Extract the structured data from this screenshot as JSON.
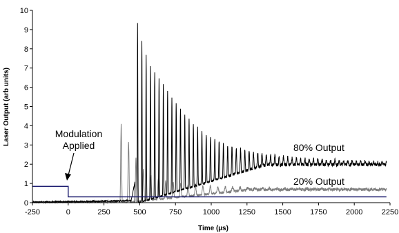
{
  "chart_data": {
    "type": "line",
    "title": "",
    "xlabel": "Time (µs)",
    "ylabel": "Laser Output (arb units)",
    "xlim": [
      -250,
      2250
    ],
    "ylim": [
      0,
      10
    ],
    "x_ticks": [
      -250,
      0,
      250,
      500,
      750,
      1000,
      1250,
      1500,
      1750,
      2000,
      2250
    ],
    "y_ticks": [
      0,
      1,
      2,
      3,
      4,
      5,
      6,
      7,
      8,
      9,
      10
    ],
    "grid": false,
    "legend": "none",
    "series": [
      {
        "name": "80% Output",
        "color": "#000000",
        "description_points": {
          "x": [
            -250,
            0,
            440,
            470,
            485,
            530,
            580,
            630,
            680,
            730,
            780,
            850,
            950,
            1100,
            1300,
            1600,
            1900,
            2225
          ],
          "y": [
            0.03,
            0.05,
            0.1,
            1.2,
            9.35,
            7.95,
            7.0,
            6.5,
            6.0,
            5.4,
            4.9,
            4.3,
            3.6,
            3.0,
            2.6,
            2.3,
            2.2,
            2.1
          ]
        },
        "steady_state": 2.0,
        "first_peak_time": 485
      },
      {
        "name": "20% Output",
        "color": "#808080",
        "description_points": {
          "x": [
            -250,
            0,
            350,
            370,
            420,
            470,
            520,
            600,
            800,
            1000,
            1300,
            2225
          ],
          "y": [
            0.0,
            0.0,
            0.02,
            4.1,
            3.2,
            2.4,
            1.8,
            1.3,
            0.95,
            0.85,
            0.75,
            0.7
          ]
        },
        "steady_state": 0.7,
        "first_peak_time": 370
      },
      {
        "name": "Modulation",
        "color": "#1a1a6e",
        "x": [
          -250,
          0,
          0,
          2225
        ],
        "y": [
          0.85,
          0.85,
          0.3,
          0.3
        ]
      }
    ],
    "annotations": [
      {
        "text_line1": "Modulation",
        "text_line2": "Applied",
        "x": 0,
        "y": 0.85
      },
      {
        "text": "80% Output",
        "x": 1450,
        "y": 2.8
      },
      {
        "text": "20% Output",
        "x": 1450,
        "y": 1.15
      }
    ]
  }
}
